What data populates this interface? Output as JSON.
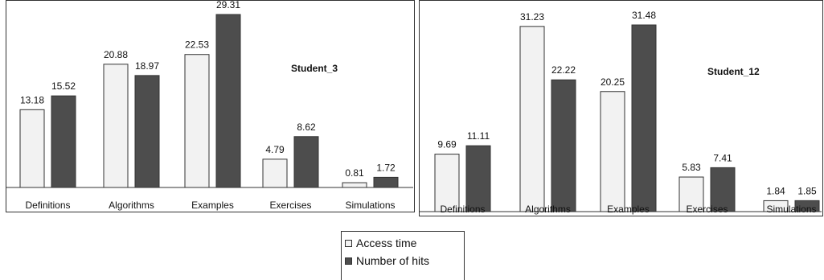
{
  "chart_data": [
    {
      "type": "bar",
      "title": "Student_3",
      "categories": [
        "Definitions",
        "Algorithms",
        "Examples",
        "Exercises",
        "Simulations"
      ],
      "series": [
        {
          "name": "Access time",
          "values": [
            13.18,
            20.88,
            22.53,
            4.79,
            0.81
          ],
          "color": "#f2f2f2"
        },
        {
          "name": "Number of hits",
          "values": [
            15.52,
            18.97,
            29.31,
            8.62,
            1.72
          ],
          "color": "#4d4d4d"
        }
      ],
      "value_labels": [
        [
          "13.18",
          "20.88",
          "22.53",
          "4.79",
          "0.81"
        ],
        [
          "15.52",
          "18.97",
          "29.31",
          "8.62",
          "1.72"
        ]
      ],
      "ylim": [
        0,
        32
      ],
      "grid": false
    },
    {
      "type": "bar",
      "title": "Student_12",
      "categories": [
        "Definitions",
        "Algorithms",
        "Examples",
        "Exercises",
        "Simulations"
      ],
      "series": [
        {
          "name": "Access time",
          "values": [
            9.69,
            31.23,
            20.25,
            5.83,
            1.84
          ],
          "color": "#f2f2f2"
        },
        {
          "name": "Number of hits",
          "values": [
            11.11,
            22.22,
            31.48,
            7.41,
            1.85
          ],
          "color": "#4d4d4d"
        }
      ],
      "value_labels": [
        [
          "9.69",
          "31.23",
          "20.25",
          "5.83",
          "1.84"
        ],
        [
          "11.11",
          "22.22",
          "31.48",
          "7.41",
          "1.85"
        ]
      ],
      "ylim": [
        0,
        34
      ],
      "grid": false
    }
  ],
  "legend": {
    "items": [
      {
        "label": "Access time",
        "color": "#f2f2f2"
      },
      {
        "label": "Number of hits",
        "color": "#4d4d4d"
      }
    ]
  }
}
